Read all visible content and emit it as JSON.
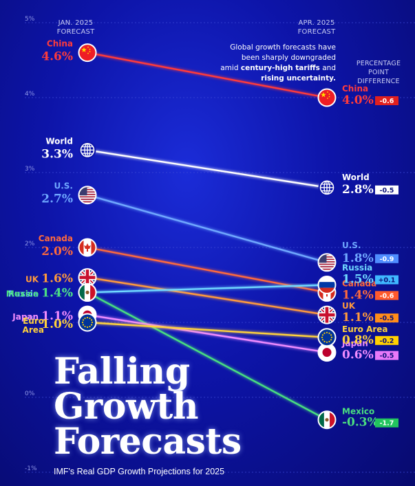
{
  "header": {
    "jan_line1": "JAN. 2025",
    "jan_line2": "FORECAST",
    "apr_line1": "APR. 2025",
    "apr_line2": "FORECAST",
    "ppd_line1": "PERCENTAGE",
    "ppd_line2": "POINT",
    "ppd_line3": "DIFFERENCE"
  },
  "note": {
    "line1": "Global growth forecasts have",
    "line2": "been sharply downgraded",
    "line3_pre": "amid ",
    "line3_bold": "century-high tariffs",
    "line3_post": " and",
    "line4_bold": "rising uncertainty."
  },
  "title": {
    "line1": "Falling",
    "line2": "Growth",
    "line3": "Forecasts",
    "subtitle": "IMF's Real GDP Growth Projections for 2025"
  },
  "chart_data": {
    "type": "slope",
    "title": "Falling Growth Forecasts",
    "subtitle": "IMF's Real GDP Growth Projections for 2025",
    "x": [
      "JAN. 2025 FORECAST",
      "APR. 2025 FORECAST"
    ],
    "y_ticks": [
      "5%",
      "4%",
      "3%",
      "2%",
      "1%",
      "0%",
      "-1%"
    ],
    "y_tick_values": [
      5,
      4,
      3,
      2,
      1,
      0,
      -1
    ],
    "ylim": [
      -1,
      5
    ],
    "grid": true,
    "series": [
      {
        "name": "China",
        "jan": 4.6,
        "apr": 4.0,
        "jan_label": "4.6%",
        "apr_label": "4.0%",
        "diff": "-0.6",
        "color": "#ff3b3b",
        "diff_color": "#e02020",
        "icon": "china-flag",
        "left_layout": "stacked"
      },
      {
        "name": "World",
        "jan": 3.3,
        "apr": 2.8,
        "jan_label": "3.3%",
        "apr_label": "2.8%",
        "diff": "-0.5",
        "color": "#ffffff",
        "diff_color": "#ffffff",
        "icon": "globe",
        "left_layout": "stacked"
      },
      {
        "name": "U.S.",
        "jan": 2.7,
        "apr": 1.8,
        "jan_label": "2.7%",
        "apr_label": "1.8%",
        "diff": "-0.9",
        "color": "#6fa8ff",
        "diff_color": "#4f8dff",
        "icon": "us-flag",
        "left_layout": "stacked"
      },
      {
        "name": "Canada",
        "jan": 2.0,
        "apr": 1.4,
        "jan_label": "2.0%",
        "apr_label": "1.4%",
        "diff": "-0.6",
        "color": "#ff6a3c",
        "diff_color": "#ff5a2c",
        "icon": "canada-flag",
        "left_layout": "stacked"
      },
      {
        "name": "UK",
        "jan": 1.6,
        "apr": 1.1,
        "jan_label": "1.6%",
        "apr_label": "1.1%",
        "diff": "-0.5",
        "color": "#ff9a3c",
        "diff_color": "#ff8c1a",
        "icon": "uk-flag",
        "left_layout": "inline"
      },
      {
        "name": "Russia",
        "jan": 1.4,
        "apr": 1.5,
        "jan_label": "1.4%",
        "apr_label": "1.5%",
        "diff": "+0.1",
        "color": "#6fd8ff",
        "diff_color": "#3fb8ff",
        "icon": "russia-flag",
        "left_layout": "inline"
      },
      {
        "name": "Mexico",
        "jan": 1.4,
        "apr": -0.3,
        "jan_label": "1.4%",
        "apr_label": "-0.3%",
        "diff": "-1.7",
        "color": "#4ade80",
        "diff_color": "#22c55e",
        "icon": "mexico-flag",
        "left_layout": "inline"
      },
      {
        "name": "Japan",
        "jan": 1.1,
        "apr": 0.6,
        "jan_label": "1.1%",
        "apr_label": "0.6%",
        "diff": "-0.5",
        "color": "#f08cff",
        "diff_color": "#e879f9",
        "icon": "japan-flag",
        "left_layout": "inline"
      },
      {
        "name": "Euro Area",
        "name_line1": "Euro",
        "name_line2": "Area",
        "jan": 1.0,
        "apr": 0.8,
        "jan_label": "1.0%",
        "apr_label": "0.8%",
        "diff": "-0.2",
        "color": "#ffd23c",
        "diff_color": "#ffd000",
        "icon": "eu-flag",
        "left_layout": "inline"
      }
    ]
  }
}
